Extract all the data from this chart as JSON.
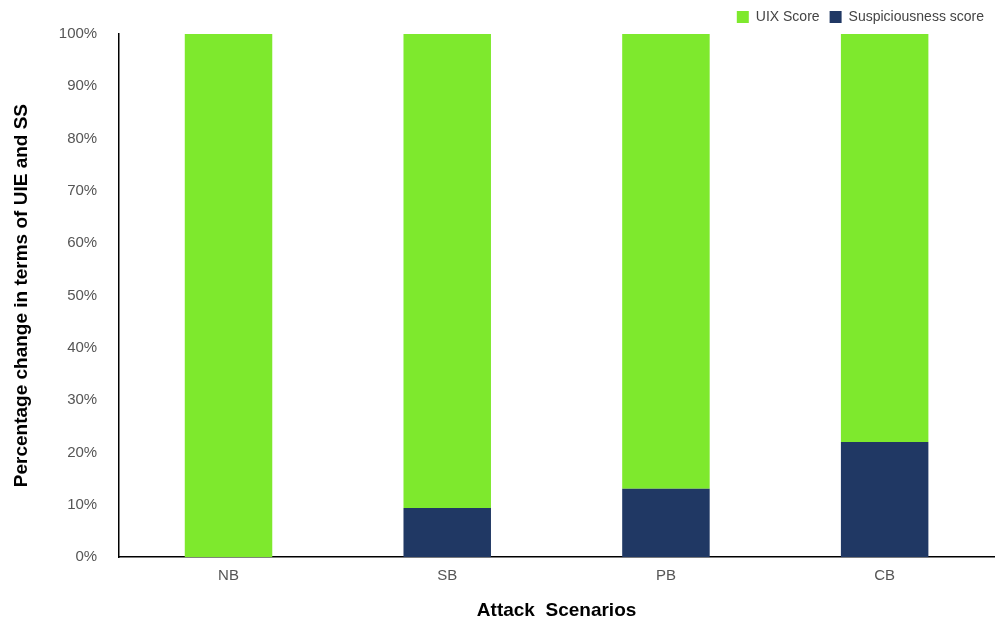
{
  "chart_data": {
    "type": "bar",
    "stacked": true,
    "xlabel": "Attack  Scenarios",
    "ylabel": "Percentage change in terms of UIE and SS",
    "categories": [
      "NB",
      "SB",
      "PB",
      "CB"
    ],
    "series": [
      {
        "name": "Suspiciousness score",
        "color": "#203864",
        "values": [
          0,
          9.4,
          13.1,
          22.0
        ]
      },
      {
        "name": "UIX Score",
        "color": "#7ee92d",
        "values": [
          100,
          90.6,
          86.9,
          78.0
        ]
      }
    ],
    "ylim": [
      0,
      100
    ],
    "yticks": [
      {
        "value": 0,
        "label": "0%"
      },
      {
        "value": 10,
        "label": "10%"
      },
      {
        "value": 20,
        "label": "20%"
      },
      {
        "value": 30,
        "label": "30%"
      },
      {
        "value": 40,
        "label": "40%"
      },
      {
        "value": 50,
        "label": "50%"
      },
      {
        "value": 60,
        "label": "60%"
      },
      {
        "value": 70,
        "label": "70%"
      },
      {
        "value": 80,
        "label": "80%"
      },
      {
        "value": 90,
        "label": "90%"
      },
      {
        "value": 100,
        "label": "100%"
      }
    ],
    "grid": false,
    "legend": "top right"
  }
}
